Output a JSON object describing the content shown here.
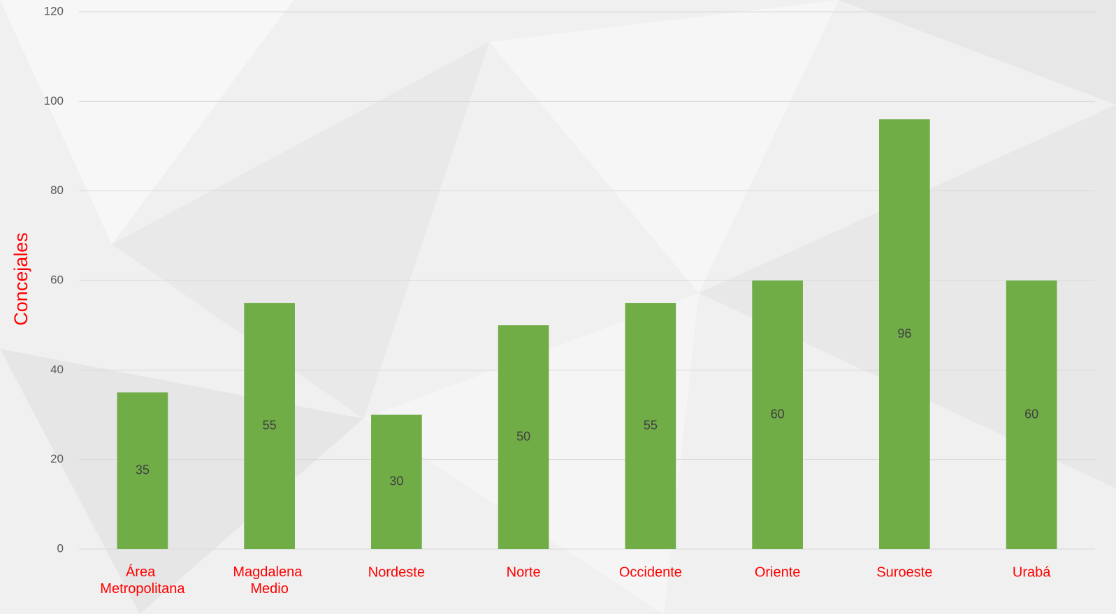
{
  "chart_data": {
    "type": "bar",
    "y_label": "Concejales",
    "categories": [
      "Área Metropolitana",
      "Magdalena Medio",
      "Nordeste",
      "Norte",
      "Occidente",
      "Oriente",
      "Suroeste",
      "Urabá"
    ],
    "values": [
      35,
      55,
      30,
      50,
      55,
      60,
      96,
      60
    ],
    "color": "#70ad47",
    "ylim": [
      0,
      120
    ],
    "yticks": [
      0,
      20,
      40,
      60,
      80,
      100,
      120
    ],
    "grid": true
  }
}
